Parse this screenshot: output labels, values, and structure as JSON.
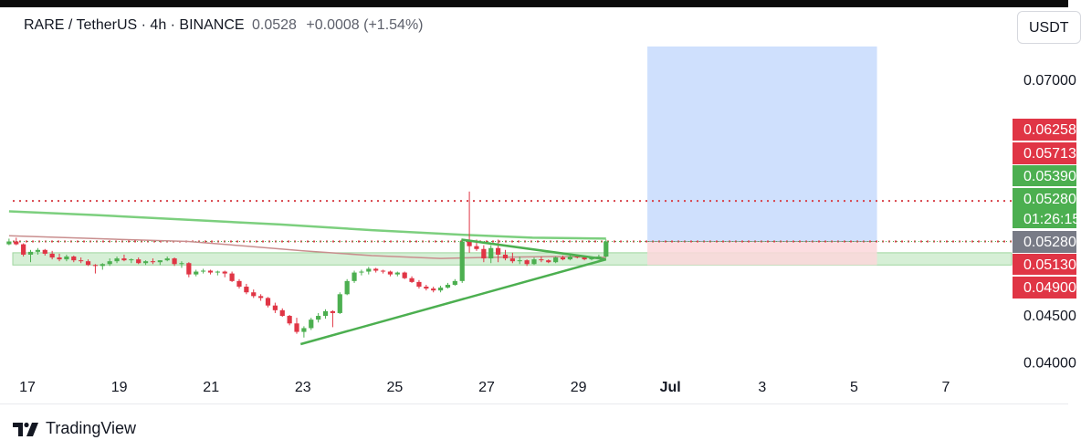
{
  "header": {
    "symbol": "RARE / TetherUS · 4h · BINANCE",
    "last_value": "0.0528",
    "change": "+0.0008 (+1.54%)",
    "currency_button": "USDT"
  },
  "brand": {
    "name": "TradingView",
    "icon": "tradingview-logo-icon"
  },
  "colors": {
    "up": "#4caf50",
    "down": "#e03545",
    "ema_green": "#7ccf7e",
    "ema_brown": "#c98e8e",
    "level_line": "#d8434b",
    "support_zone": "#c8eac8",
    "target_zone": "#cfe0fd",
    "stop_zone": "#fcd7da",
    "trendline": "#4caf50"
  },
  "chart_data": {
    "type": "candlestick",
    "title": "RARE / TetherUS · 4h · BINANCE",
    "x_tick_labels": [
      "17",
      "19",
      "21",
      "23",
      "25",
      "27",
      "29",
      "Jul",
      "3",
      "5",
      "7"
    ],
    "y_tick_labels": [
      "0.07000",
      "0.04500",
      "0.04000"
    ],
    "ylim": [
      0.0395,
      0.0745
    ],
    "xlim_days": [
      16.6,
      38.5
    ],
    "grid": false,
    "price_tags": [
      {
        "text": "0.06258",
        "role": "take-profit",
        "color": "#e03545"
      },
      {
        "text": "0.05713",
        "role": "resistance-level",
        "color": "#e03545"
      },
      {
        "text": "0.05390",
        "role": "position-target",
        "color": "#4caf50"
      },
      {
        "text": "0.05280",
        "role": "resistance-level",
        "color": "#4caf50"
      },
      {
        "text": "01:26:15",
        "role": "bar-countdown",
        "color": "#4caf50"
      },
      {
        "text": "0.05280",
        "role": "last-price",
        "color": "#787b86"
      },
      {
        "text": "0.05130",
        "role": "zone-top",
        "color": "#e03545"
      },
      {
        "text": "0.04900",
        "role": "zone-bottom",
        "color": "#e03545"
      }
    ],
    "horizontal_levels": [
      0.0571,
      0.0528
    ],
    "last_price": 0.0528,
    "support_zone": [
      0.0503,
      0.0516
    ],
    "position": {
      "entry": 0.0528,
      "target": 0.0735,
      "stop": 0.0503,
      "start_day": 30.5,
      "end_day": 35.5
    },
    "triangle": {
      "upper": [
        [
          26.45,
          0.053
        ],
        [
          29.6,
          0.0509
        ]
      ],
      "lower": [
        [
          22.95,
          0.0419
        ],
        [
          29.6,
          0.0509
        ]
      ]
    },
    "ema_green": [
      [
        16.6,
        0.056
      ],
      [
        18.5,
        0.0556
      ],
      [
        20.5,
        0.0551
      ],
      [
        22.5,
        0.0546
      ],
      [
        24.5,
        0.054
      ],
      [
        26.5,
        0.0535
      ],
      [
        28,
        0.0532
      ],
      [
        29.6,
        0.0531
      ]
    ],
    "ema_brown": [
      [
        16.6,
        0.0534
      ],
      [
        18.5,
        0.0531
      ],
      [
        20.5,
        0.0528
      ],
      [
        21.8,
        0.0523
      ],
      [
        23,
        0.0518
      ],
      [
        24.5,
        0.0513
      ],
      [
        26,
        0.051
      ],
      [
        27,
        0.0511
      ],
      [
        28.5,
        0.0512
      ],
      [
        29.6,
        0.0511
      ]
    ],
    "ohlc": [
      [
        0.0525,
        0.0531,
        0.0524,
        0.0528
      ],
      [
        0.0528,
        0.0532,
        0.0524,
        0.0525
      ],
      [
        0.0525,
        0.0526,
        0.0512,
        0.0514
      ],
      [
        0.0514,
        0.0519,
        0.0506,
        0.0517
      ],
      [
        0.0517,
        0.0521,
        0.0514,
        0.0519
      ],
      [
        0.0519,
        0.052,
        0.0513,
        0.0515
      ],
      [
        0.0515,
        0.0518,
        0.0509,
        0.0511
      ],
      [
        0.0511,
        0.0515,
        0.0507,
        0.0509
      ],
      [
        0.0509,
        0.0514,
        0.0507,
        0.0512
      ],
      [
        0.0512,
        0.0513,
        0.0506,
        0.0508
      ],
      [
        0.0508,
        0.0511,
        0.0505,
        0.0507
      ],
      [
        0.0507,
        0.0509,
        0.0502,
        0.0503
      ],
      [
        0.0503,
        0.0504,
        0.0494,
        0.0502
      ],
      [
        0.0502,
        0.0505,
        0.0498,
        0.0504
      ],
      [
        0.0504,
        0.051,
        0.0502,
        0.0507
      ],
      [
        0.0507,
        0.0512,
        0.0505,
        0.051
      ],
      [
        0.051,
        0.0514,
        0.0507,
        0.0508
      ],
      [
        0.0508,
        0.051,
        0.0505,
        0.0509
      ],
      [
        0.0509,
        0.0511,
        0.0504,
        0.0505
      ],
      [
        0.0505,
        0.0508,
        0.0503,
        0.0507
      ],
      [
        0.0507,
        0.051,
        0.0504,
        0.0506
      ],
      [
        0.0506,
        0.0508,
        0.0503,
        0.0508
      ],
      [
        0.0508,
        0.0512,
        0.0507,
        0.051
      ],
      [
        0.051,
        0.0511,
        0.0502,
        0.0504
      ],
      [
        0.0504,
        0.0507,
        0.05,
        0.0505
      ],
      [
        0.0505,
        0.0506,
        0.049,
        0.0493
      ],
      [
        0.0493,
        0.0498,
        0.0491,
        0.0496
      ],
      [
        0.0496,
        0.0499,
        0.0494,
        0.0497
      ],
      [
        0.0497,
        0.0498,
        0.0493,
        0.0495
      ],
      [
        0.0495,
        0.0497,
        0.0492,
        0.0496
      ],
      [
        0.0496,
        0.0497,
        0.049,
        0.0494
      ],
      [
        0.0494,
        0.0496,
        0.0485,
        0.0486
      ],
      [
        0.0486,
        0.0488,
        0.0478,
        0.048
      ],
      [
        0.048,
        0.0483,
        0.0472,
        0.0474
      ],
      [
        0.0474,
        0.0477,
        0.0468,
        0.047
      ],
      [
        0.047,
        0.0472,
        0.0465,
        0.0468
      ],
      [
        0.0468,
        0.0469,
        0.0458,
        0.046
      ],
      [
        0.046,
        0.0463,
        0.0452,
        0.0455
      ],
      [
        0.0455,
        0.0457,
        0.0448,
        0.0449
      ],
      [
        0.0449,
        0.045,
        0.0439,
        0.0441
      ],
      [
        0.0441,
        0.0447,
        0.043,
        0.0432
      ],
      [
        0.0432,
        0.0438,
        0.0426,
        0.0436
      ],
      [
        0.0436,
        0.0447,
        0.0434,
        0.0445
      ],
      [
        0.0445,
        0.0452,
        0.0442,
        0.0449
      ],
      [
        0.0449,
        0.0456,
        0.0446,
        0.0454
      ],
      [
        0.0454,
        0.0455,
        0.0437,
        0.0452
      ],
      [
        0.0452,
        0.0474,
        0.0451,
        0.0472
      ],
      [
        0.0472,
        0.0488,
        0.0471,
        0.0486
      ],
      [
        0.0486,
        0.0497,
        0.0484,
        0.0495
      ],
      [
        0.0495,
        0.0498,
        0.0492,
        0.0496
      ],
      [
        0.0496,
        0.0501,
        0.0493,
        0.0499
      ],
      [
        0.0499,
        0.05,
        0.0495,
        0.0497
      ],
      [
        0.0497,
        0.0498,
        0.0494,
        0.0496
      ],
      [
        0.0496,
        0.0497,
        0.0491,
        0.0493
      ],
      [
        0.0493,
        0.0496,
        0.0491,
        0.0495
      ],
      [
        0.0495,
        0.0496,
        0.0488,
        0.0489
      ],
      [
        0.0489,
        0.0491,
        0.0484,
        0.0485
      ],
      [
        0.0485,
        0.0487,
        0.0478,
        0.048
      ],
      [
        0.048,
        0.0482,
        0.0476,
        0.0478
      ],
      [
        0.0478,
        0.048,
        0.0474,
        0.0476
      ],
      [
        0.0476,
        0.0481,
        0.0474,
        0.0479
      ],
      [
        0.0479,
        0.0484,
        0.0478,
        0.0482
      ],
      [
        0.0482,
        0.0488,
        0.0481,
        0.0486
      ],
      [
        0.0486,
        0.0531,
        0.0484,
        0.0528
      ],
      [
        0.0528,
        0.0581,
        0.0516,
        0.0523
      ],
      [
        0.0523,
        0.053,
        0.0518,
        0.052
      ],
      [
        0.052,
        0.0524,
        0.0506,
        0.051
      ],
      [
        0.051,
        0.0524,
        0.0505,
        0.0521
      ],
      [
        0.0521,
        0.053,
        0.0506,
        0.0514
      ],
      [
        0.0514,
        0.0519,
        0.0508,
        0.051
      ],
      [
        0.051,
        0.0516,
        0.0505,
        0.0507
      ],
      [
        0.0507,
        0.0512,
        0.0504,
        0.0508
      ],
      [
        0.0508,
        0.0509,
        0.0502,
        0.0504
      ],
      [
        0.0504,
        0.0511,
        0.0503,
        0.0509
      ],
      [
        0.0509,
        0.0512,
        0.0506,
        0.0508
      ],
      [
        0.0508,
        0.0509,
        0.0505,
        0.0506
      ],
      [
        0.0506,
        0.0512,
        0.0505,
        0.0511
      ],
      [
        0.0511,
        0.0513,
        0.0508,
        0.0509
      ],
      [
        0.0509,
        0.0513,
        0.0508,
        0.0512
      ],
      [
        0.0512,
        0.0514,
        0.051,
        0.0511
      ],
      [
        0.0511,
        0.0512,
        0.0508,
        0.0509
      ],
      [
        0.0509,
        0.0512,
        0.0508,
        0.0511
      ],
      [
        0.0511,
        0.0514,
        0.051,
        0.0512
      ],
      [
        0.0512,
        0.053,
        0.0511,
        0.0528
      ]
    ]
  }
}
